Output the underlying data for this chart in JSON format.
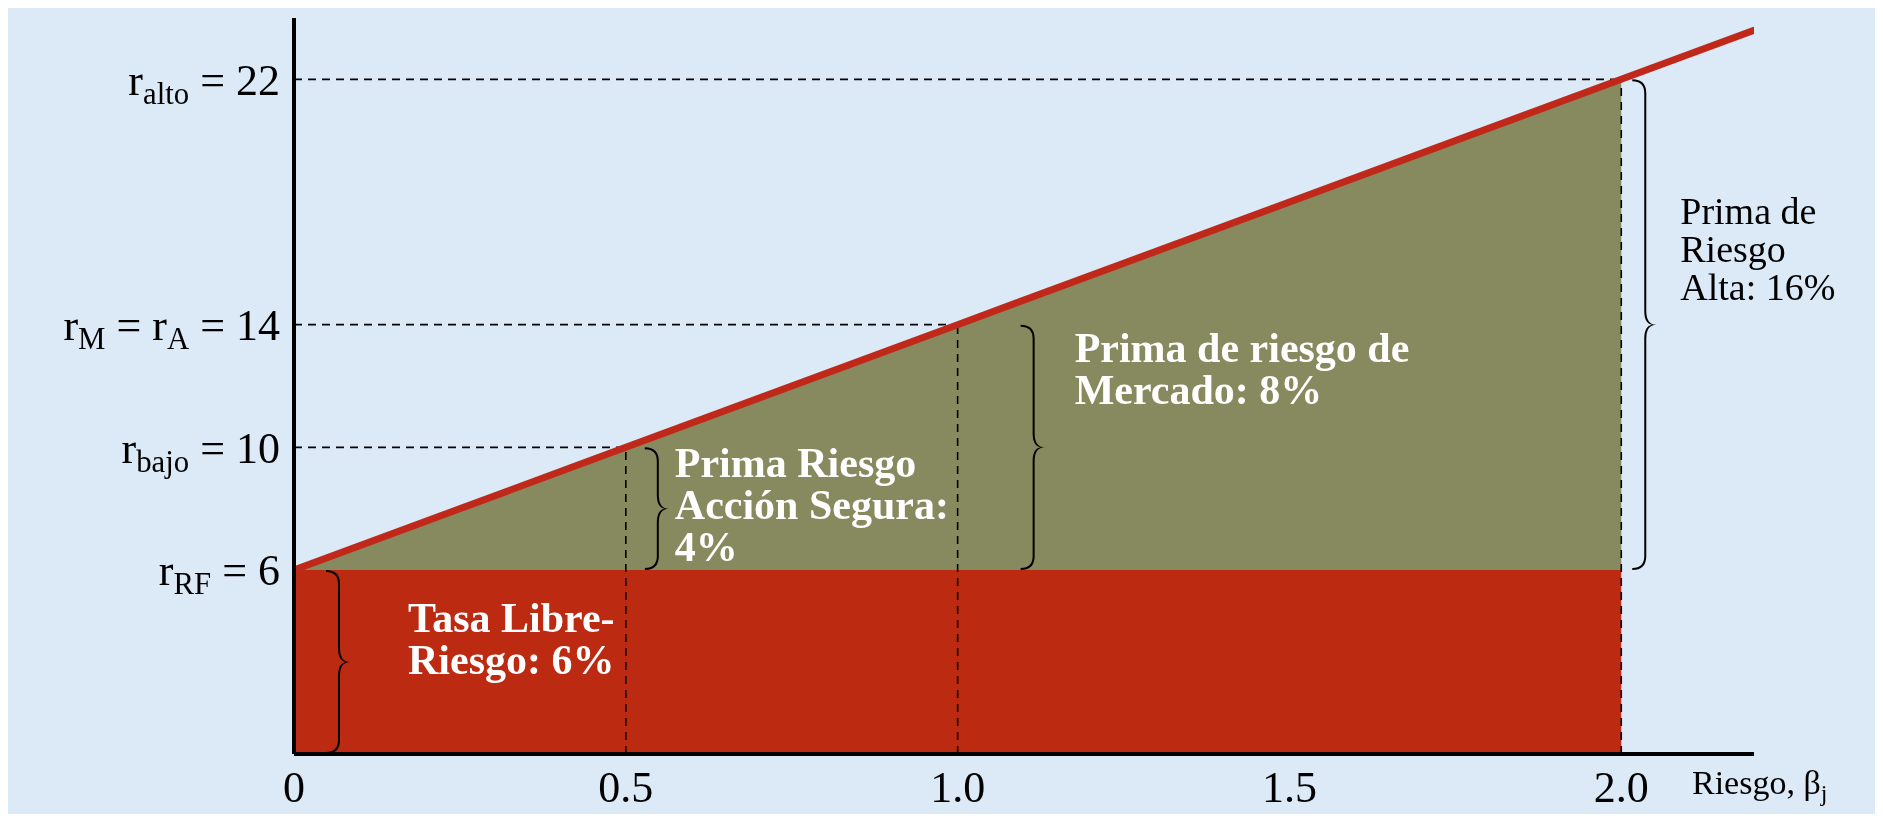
{
  "chart_data": {
    "type": "area",
    "stacked": true,
    "xlabel": "Riesgo, β$_{j}$",
    "xlim": [
      0,
      2.2
    ],
    "xticks": [
      0,
      0.5,
      {
        "value": 1,
        "label": "1.0"
      },
      1.5,
      {
        "value": 2,
        "label": "2.0"
      }
    ],
    "ylim": [
      0,
      24
    ],
    "yticks": [
      {
        "value": 6,
        "label": "r$_{RF}$ = 6"
      },
      {
        "value": 10,
        "label": "r$_{bajo}$ = 10"
      },
      {
        "value": 14,
        "label": "r$_{M}$ = r$_{A}$ = 14"
      },
      {
        "value": 22,
        "label": "r$_{alto}$ = 22"
      }
    ],
    "series": [
      {
        "color": "#bd2a12",
        "x": [
          0,
          2
        ],
        "values": [
          6,
          6
        ]
      },
      {
        "color": "#878a5e",
        "x": [
          0,
          2
        ],
        "values": [
          0,
          16
        ]
      },
      {
        "type": "line",
        "color": "#c0291a",
        "x": [
          0,
          0.5,
          1,
          2,
          2.2
        ],
        "values": [
          6,
          10,
          14,
          22,
          23.6
        ]
      }
    ],
    "ref_lines": [
      {
        "axis": "y",
        "value": 22,
        "line_style": "dashed",
        "color": "#000000"
      },
      {
        "axis": "y",
        "value": 14,
        "line_style": "dashed",
        "color": "#000000"
      },
      {
        "axis": "y",
        "value": 10,
        "line_style": "dashed",
        "color": "#000000"
      },
      {
        "axis": "x",
        "value": 0.5,
        "line_style": "dashed",
        "color": "#000000"
      },
      {
        "axis": "x",
        "value": 1,
        "line_style": "dashed",
        "color": "#000000"
      },
      {
        "axis": "x",
        "value": 2,
        "line_style": "dashed",
        "color": "#000000"
      }
    ],
    "annotations": [
      {
        "text": "Tasa Libre-\nRiesgo: 6%",
        "x": 0,
        "y": 3
      },
      {
        "text": "Prima Riesgo\nAcción Segura:\n4%",
        "x": 0.5,
        "y": 8
      },
      {
        "text": "Prima de riesgo de\nMercado: 8%",
        "x": 1,
        "y": 10
      },
      {
        "text": "Prima de\nRiesgo\nAlta: 16%",
        "x": 2,
        "y": 14
      }
    ],
    "grid": false,
    "legend": false
  }
}
